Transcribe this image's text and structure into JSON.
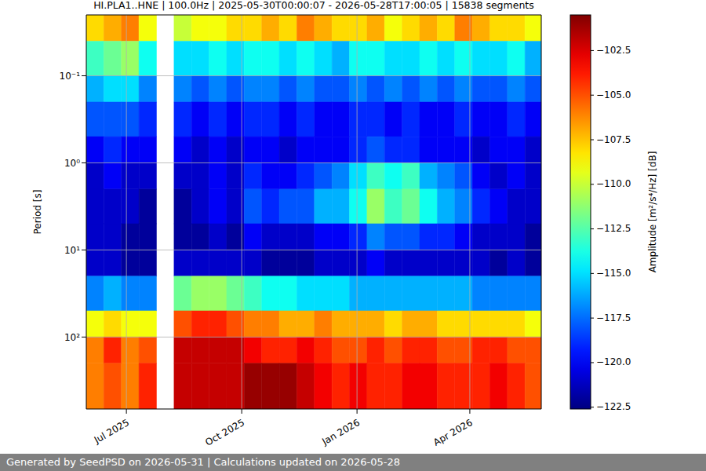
{
  "chart_data": {
    "type": "heatmap",
    "title": "HI.PLA1..HNE | 100.0Hz | 2025-05-30T00:00:07 - 2026-05-28T17:00:05 | 15838 segments",
    "y_label": "Period [s]",
    "footer": "Generated by SeedPSD on 2026-05-31 | Calculations updated on 2026-05-28",
    "log": "y",
    "grid": true,
    "xlim": [
      "2025-05-30",
      "2026-05-28"
    ],
    "xticks": [
      {
        "value": "2025-07-01",
        "label": "Jul 2025"
      },
      {
        "value": "2025-10-01",
        "label": "Oct 2025"
      },
      {
        "value": "2026-01-01",
        "label": "Jan 2026"
      },
      {
        "value": "2026-04-01",
        "label": "Apr 2026"
      }
    ],
    "ylim": [
      0.02,
      670
    ],
    "yticks": [
      {
        "value": 0.1,
        "label": "10⁻¹"
      },
      {
        "value": 1,
        "label": "10⁰"
      },
      {
        "value": 10,
        "label": "10¹"
      },
      {
        "value": 100,
        "label": "10²"
      }
    ],
    "x_edges": [
      "2025-05-30",
      "2025-06-13",
      "2025-06-27",
      "2025-07-11",
      "2025-07-25",
      "2025-08-08",
      "2025-08-22",
      "2025-09-05",
      "2025-09-19",
      "2025-10-03",
      "2025-10-17",
      "2025-10-31",
      "2025-11-14",
      "2025-11-28",
      "2025-12-12",
      "2025-12-26",
      "2026-01-09",
      "2026-01-23",
      "2026-02-06",
      "2026-02-20",
      "2026-03-06",
      "2026-03-20",
      "2026-04-03",
      "2026-04-17",
      "2026-05-01",
      "2026-05-15",
      "2026-05-28"
    ],
    "y_edges": [
      0.02,
      0.04,
      0.1,
      0.2,
      0.5,
      1,
      2,
      5,
      10,
      20,
      50,
      100,
      200,
      670
    ],
    "cells": [
      [
        -108,
        -107,
        -106,
        -109,
        null,
        -110,
        -109,
        -109,
        -108,
        -108,
        -107,
        -108,
        -106,
        -107,
        -108,
        -108,
        -107,
        -109,
        -108,
        -107,
        -108,
        -106,
        -107,
        -108,
        -108,
        -109
      ],
      [
        -113,
        -112,
        -111,
        -114,
        null,
        -115,
        -115,
        -114,
        -115,
        -114,
        -114,
        -115,
        -114,
        -115,
        -116,
        -114,
        -114,
        -115,
        -115,
        -114,
        -115,
        -114,
        -115,
        -115,
        -114,
        -116
      ],
      [
        -116,
        -115,
        -115,
        -117,
        null,
        -117,
        -118,
        -117,
        -118,
        -117,
        -117,
        -118,
        -117,
        -118,
        -118,
        -117,
        -118,
        -117,
        -118,
        -117,
        -118,
        -117,
        -118,
        -118,
        -117,
        -118
      ],
      [
        -118,
        -118,
        -118,
        -119,
        null,
        -119,
        -120,
        -119,
        -120,
        -119,
        -119,
        -120,
        -119,
        -120,
        -120,
        -119,
        -119,
        -120,
        -119,
        -120,
        -120,
        -119,
        -120,
        -120,
        -119,
        -120
      ],
      [
        -120,
        -119,
        -120,
        -120,
        null,
        -120,
        -121,
        -120,
        -121,
        -120,
        -120,
        -121,
        -120,
        -120,
        -120,
        -119,
        -118,
        -119,
        -119,
        -120,
        -120,
        -120,
        -121,
        -120,
        -120,
        -121
      ],
      [
        -121,
        -120,
        -121,
        -121,
        null,
        -121,
        -121,
        -120,
        -121,
        -119,
        -120,
        -120,
        -119,
        -118,
        -117,
        -115,
        -113,
        -114,
        -113,
        -116,
        -117,
        -118,
        -120,
        -121,
        -120,
        -121
      ],
      [
        -121,
        -121,
        -121,
        -122,
        null,
        -122,
        -121,
        -120,
        -121,
        -118,
        -119,
        -118,
        -118,
        -116,
        -116,
        -114,
        -111,
        -113,
        -112,
        -114,
        -116,
        -117,
        -119,
        -120,
        -121,
        -121
      ],
      [
        -121,
        -121,
        -122,
        -122,
        null,
        -122,
        -122,
        -121,
        -122,
        -120,
        -121,
        -121,
        -121,
        -120,
        -120,
        -119,
        -117,
        -118,
        -118,
        -119,
        -119,
        -120,
        -121,
        -121,
        -121,
        -122
      ],
      [
        -121,
        -121,
        -122,
        -122,
        null,
        -121,
        -121,
        -121,
        -121,
        -121,
        -122,
        -122,
        -122,
        -121,
        -121,
        -121,
        -120,
        -121,
        -121,
        -121,
        -121,
        -121,
        -121,
        -122,
        -121,
        -122
      ],
      [
        -117,
        -116,
        -117,
        -117,
        null,
        -112,
        -111,
        -111,
        -112,
        -113,
        -114,
        -114,
        -115,
        -115,
        -115,
        -116,
        -116,
        -116,
        -116,
        -116,
        -116,
        -116,
        -117,
        -117,
        -117,
        -117
      ],
      [
        -109,
        -108,
        -109,
        -109,
        null,
        -105,
        -104,
        -104,
        -105,
        -106,
        -106,
        -107,
        -107,
        -106,
        -107,
        -107,
        -107,
        -108,
        -107,
        -107,
        -108,
        -108,
        -108,
        -108,
        -108,
        -109
      ],
      [
        -106,
        -104,
        -106,
        -105,
        null,
        -102,
        -102,
        -102,
        -102,
        -103,
        -104,
        -104,
        -103,
        -104,
        -105,
        -105,
        -104,
        -105,
        -104,
        -104,
        -105,
        -105,
        -104,
        -104,
        -105,
        -105
      ],
      [
        -106,
        -105,
        -106,
        -104,
        null,
        -102,
        -102,
        -102,
        -102,
        -101,
        -101,
        -101,
        -102,
        -103,
        -104,
        -103,
        -104,
        -104,
        -103,
        -103,
        -104,
        -104,
        -104,
        -103,
        -104,
        -105
      ]
    ],
    "colorbar": {
      "label": "Amplitude [m²/s⁴/Hz] [dB]",
      "range": [
        -122.6,
        -100.5
      ],
      "ticks": [
        {
          "value": -102.5,
          "label": "−102.5"
        },
        {
          "value": -105,
          "label": "−105.0"
        },
        {
          "value": -107.5,
          "label": "−107.5"
        },
        {
          "value": -110,
          "label": "−110.0"
        },
        {
          "value": -112.5,
          "label": "−112.5"
        },
        {
          "value": -115,
          "label": "−115.0"
        },
        {
          "value": -117.5,
          "label": "−117.5"
        },
        {
          "value": -120,
          "label": "−120.0"
        },
        {
          "value": -122.5,
          "label": "−122.5"
        }
      ]
    }
  }
}
